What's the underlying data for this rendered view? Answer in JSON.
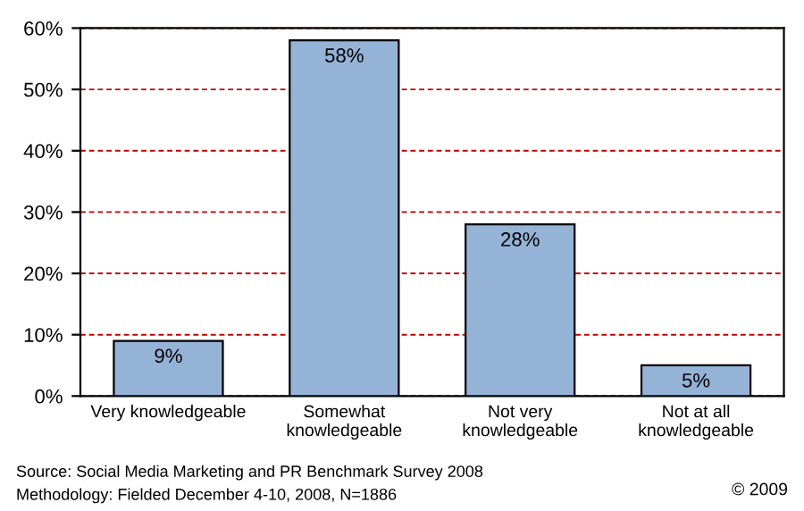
{
  "chart_data": {
    "type": "bar",
    "categories": [
      "Very knowledgeable",
      "Somewhat\nknowledgeable",
      "Not very\nknowledgeable",
      "Not at all\nknowledgeable"
    ],
    "values": [
      9,
      58,
      28,
      5
    ],
    "value_labels": [
      "9%",
      "58%",
      "28%",
      "5%"
    ],
    "color": "#95b3d7",
    "ylim": [
      0,
      60
    ],
    "yticks": [
      {
        "value": 0,
        "label": "0%"
      },
      {
        "value": 10,
        "label": "10%"
      },
      {
        "value": 20,
        "label": "20%"
      },
      {
        "value": 30,
        "label": "30%"
      },
      {
        "value": 40,
        "label": "40%"
      },
      {
        "value": 50,
        "label": "50%"
      },
      {
        "value": 60,
        "label": "60%"
      }
    ],
    "grid": "y",
    "annotations": [
      "Source: Social Media Marketing and PR Benchmark Survey 2008",
      "Methodology: Fielded December 4-10, 2008, N=1886",
      "© 2009"
    ]
  }
}
